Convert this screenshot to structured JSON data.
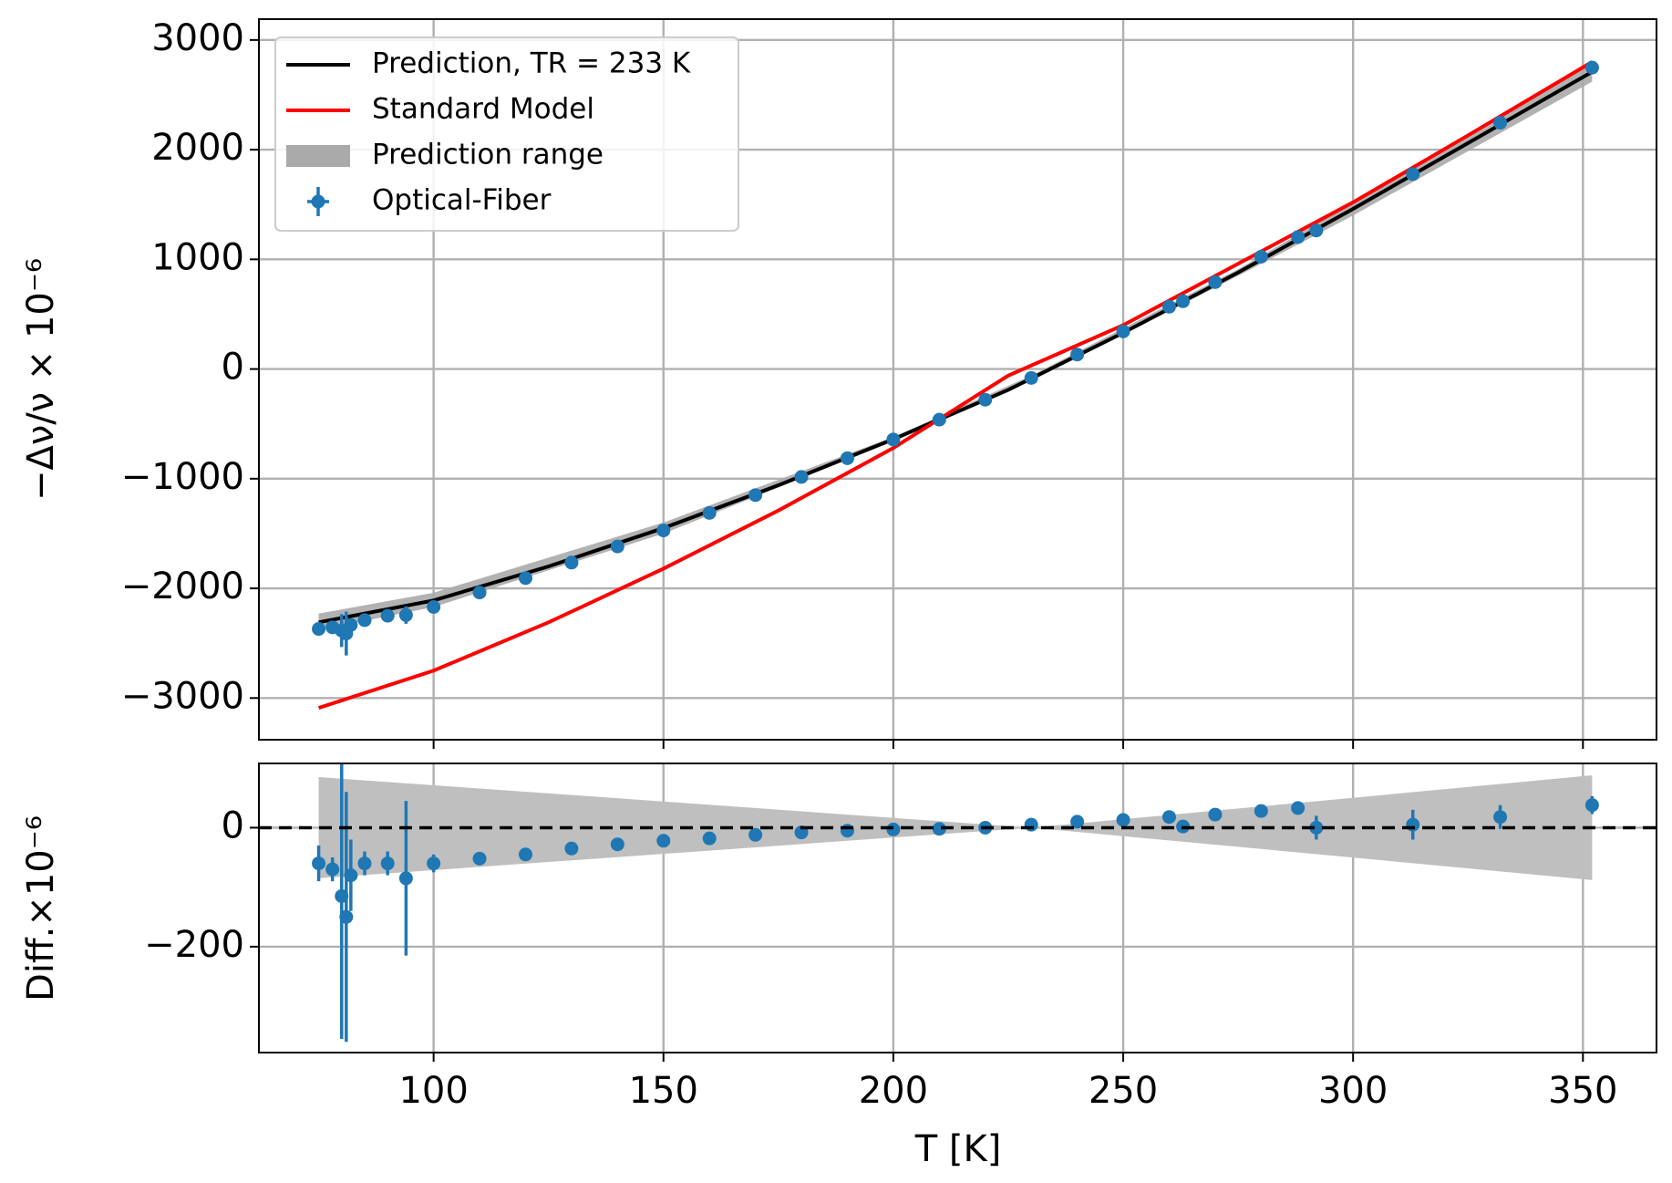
{
  "chart_data": [
    {
      "type": "line",
      "ylabel": "−Δν/ν × 10⁻⁶",
      "xlim": [
        62,
        366
      ],
      "xticks": [
        100,
        150,
        200,
        250,
        300,
        350
      ],
      "ylim": [
        -3380,
        3190
      ],
      "yticks": [
        {
          "value": -3000,
          "label": "−3000"
        },
        {
          "value": -2000,
          "label": "−2000"
        },
        {
          "value": -1000,
          "label": "−1000"
        },
        0,
        1000,
        2000,
        3000
      ],
      "grid": true,
      "legend": "upper left",
      "series": [
        {
          "name": "Prediction, TR = 233 K",
          "kind": "line",
          "color": "#000000",
          "x": [
            75,
            100,
            125,
            150,
            175,
            200,
            225,
            250,
            275,
            300,
            325,
            352
          ],
          "values": [
            -2310,
            -2110,
            -1800,
            -1450,
            -1060,
            -640,
            -190,
            330,
            880,
            1460,
            2060,
            2710
          ]
        },
        {
          "name": "Standard Model",
          "kind": "line",
          "color": "#ff0000",
          "x": [
            75,
            100,
            125,
            150,
            175,
            200,
            225,
            250,
            275,
            300,
            325,
            352
          ],
          "values": [
            -3090,
            -2750,
            -2310,
            -1820,
            -1290,
            -720,
            -60,
            400,
            960,
            1520,
            2130,
            2800
          ]
        },
        {
          "name": "Prediction range",
          "kind": "band",
          "color": "#aaaaaa",
          "x": [
            75,
            100,
            150,
            200,
            230,
            275,
            300,
            352
          ],
          "lower": [
            -2380,
            -2170,
            -1500,
            -660,
            -110,
            850,
            1400,
            2620
          ],
          "upper": [
            -2230,
            -2040,
            -1400,
            -620,
            -60,
            910,
            1520,
            2800
          ]
        },
        {
          "name": "Optical-Fiber",
          "kind": "errorbar",
          "color": "#1f77b4",
          "x": [
            75,
            78,
            80,
            81,
            82,
            85,
            90,
            94,
            100,
            110,
            120,
            130,
            140,
            150,
            160,
            170,
            180,
            190,
            200,
            210,
            220,
            230,
            240,
            250,
            260,
            263,
            270,
            280,
            288,
            292,
            313,
            332,
            352
          ],
          "values": [
            -2370,
            -2356,
            -2385,
            -2412,
            -2334,
            -2290,
            -2250,
            -2243,
            -2170,
            -2038,
            -1907,
            -1765,
            -1618,
            -1472,
            -1312,
            -1150,
            -984,
            -813,
            -643,
            -462,
            -280,
            -81,
            132,
            343,
            568,
            618,
            792,
            1024,
            1203,
            1263,
            1777,
            2246,
            2748
          ],
          "errors": [
            30,
            20,
            150,
            200,
            60,
            20,
            20,
            80,
            15,
            10,
            10,
            10,
            10,
            10,
            10,
            10,
            10,
            10,
            10,
            10,
            10,
            10,
            10,
            10,
            10,
            10,
            10,
            10,
            10,
            20,
            25,
            20,
            15
          ]
        }
      ]
    },
    {
      "type": "line",
      "xlabel": "T [K]",
      "ylabel": "Diff.×10⁻⁶",
      "xlim": [
        62,
        366
      ],
      "xticks": [
        100,
        150,
        200,
        250,
        300,
        350
      ],
      "ylim": [
        -378,
        108
      ],
      "yticks": [
        {
          "value": -200,
          "label": "−200"
        },
        0
      ],
      "grid": true,
      "reference_line": 0,
      "series": [
        {
          "kind": "band",
          "color": "#bfbfbf",
          "x": [
            75,
            150,
            230,
            290,
            352
          ],
          "lower": [
            -85,
            -44,
            0,
            -43,
            -88
          ],
          "upper": [
            85,
            44,
            0,
            43,
            88
          ]
        },
        {
          "kind": "errorbar",
          "color": "#1f77b4",
          "x": [
            75,
            78,
            80,
            81,
            82,
            85,
            90,
            94,
            100,
            110,
            120,
            130,
            140,
            150,
            160,
            170,
            180,
            190,
            200,
            210,
            220,
            230,
            240,
            250,
            260,
            263,
            270,
            280,
            288,
            292,
            313,
            332,
            352
          ],
          "values": [
            -60,
            -70,
            -115,
            -150,
            -80,
            -60,
            -60,
            -85,
            -60,
            -52,
            -45,
            -35,
            -28,
            -22,
            -18,
            -12,
            -8,
            -5,
            -3,
            -2,
            0,
            5,
            10,
            13,
            18,
            2,
            22,
            28,
            33,
            0,
            5,
            18,
            38
          ],
          "errors": [
            30,
            20,
            240,
            210,
            60,
            20,
            20,
            130,
            15,
            10,
            10,
            10,
            10,
            10,
            10,
            10,
            10,
            10,
            10,
            10,
            10,
            10,
            10,
            10,
            10,
            10,
            10,
            10,
            10,
            20,
            25,
            20,
            15
          ]
        }
      ]
    }
  ]
}
